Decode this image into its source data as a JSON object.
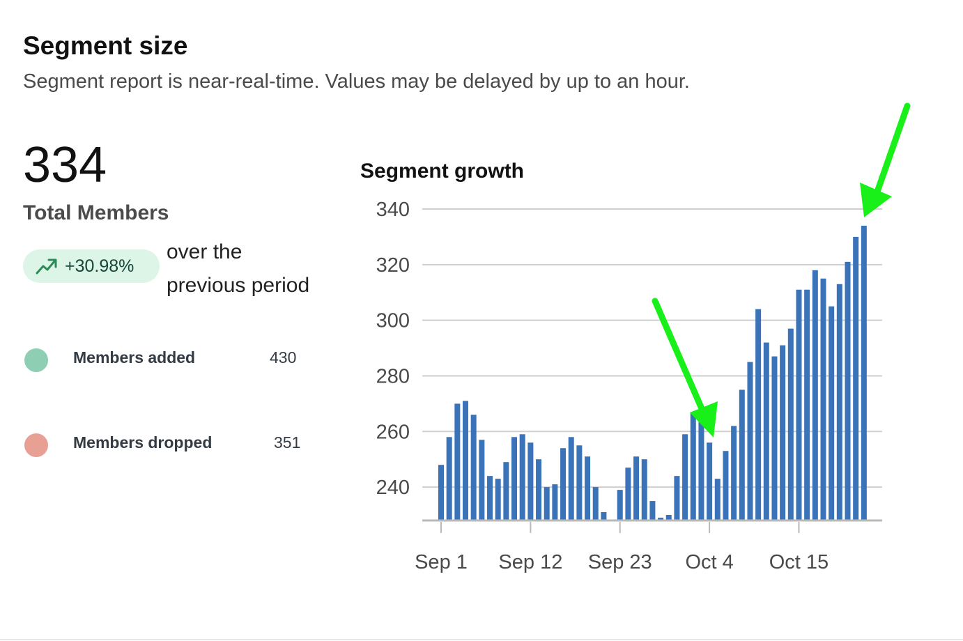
{
  "header": {
    "title": "Segment size",
    "subtitle": "Segment report is near-real-time. Values may be delayed by up to an hour."
  },
  "summary": {
    "total_value": "334",
    "total_label": "Total Members",
    "change_badge": "+30.98%",
    "change_icon": "trending-up-icon",
    "period_line1": "over the",
    "period_line2": "previous period"
  },
  "legend": [
    {
      "label": "Members added",
      "value": "430",
      "color": "#8ecfb3"
    },
    {
      "label": "Members dropped",
      "value": "351",
      "color": "#e8a095"
    }
  ],
  "colors": {
    "bar": "#3a73b8",
    "arrow": "#19f019",
    "badge_bg": "#dcf5e6",
    "badge_icon": "#2b8a57"
  },
  "annotations": {
    "arrows": [
      {
        "points_to": "Oct 5 bar (243)"
      },
      {
        "points_to": "last bar (334)"
      }
    ]
  },
  "chart_data": {
    "type": "bar",
    "title": "Segment growth",
    "xlabel": "",
    "ylabel": "",
    "ylim": [
      228,
      340
    ],
    "yticks": [
      240,
      260,
      280,
      300,
      320,
      340
    ],
    "xticks": [
      "Sep 1",
      "Sep 12",
      "Sep 23",
      "Oct 4",
      "Oct 15"
    ],
    "categories": [
      "Sep 1",
      "Sep 2",
      "Sep 3",
      "Sep 4",
      "Sep 5",
      "Sep 6",
      "Sep 7",
      "Sep 8",
      "Sep 9",
      "Sep 10",
      "Sep 11",
      "Sep 12",
      "Sep 13",
      "Sep 14",
      "Sep 15",
      "Sep 16",
      "Sep 17",
      "Sep 18",
      "Sep 19",
      "Sep 20",
      "Sep 21",
      "Sep 22",
      "Sep 23",
      "Sep 24",
      "Sep 25",
      "Sep 26",
      "Sep 27",
      "Sep 28",
      "Sep 29",
      "Sep 30",
      "Oct 1",
      "Oct 2",
      "Oct 3",
      "Oct 4",
      "Oct 5",
      "Oct 6",
      "Oct 7",
      "Oct 8",
      "Oct 9",
      "Oct 10",
      "Oct 11",
      "Oct 12",
      "Oct 13",
      "Oct 14",
      "Oct 15",
      "Oct 16",
      "Oct 17",
      "Oct 18",
      "Oct 19",
      "Oct 20",
      "Oct 21",
      "Oct 22",
      "Oct 23"
    ],
    "values": [
      248,
      258,
      270,
      271,
      266,
      257,
      244,
      243,
      249,
      258,
      259,
      256,
      250,
      240,
      241,
      254,
      258,
      255,
      251,
      240,
      231,
      228,
      239,
      247,
      251,
      250,
      235,
      229,
      230,
      244,
      259,
      267,
      264,
      256,
      243,
      253,
      262,
      275,
      285,
      304,
      292,
      287,
      291,
      297,
      311,
      311,
      318,
      315,
      305,
      313,
      321,
      330,
      334
    ],
    "grid": true,
    "legend": "none"
  }
}
